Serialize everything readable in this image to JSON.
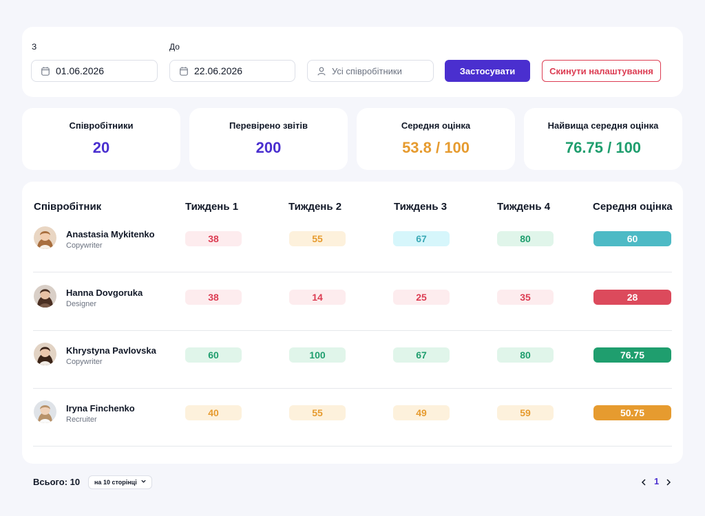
{
  "filters": {
    "from_label": "З",
    "to_label": "До",
    "from_value": "01.06.2026",
    "to_value": "22.06.2026",
    "employee_placeholder": "Усі співробітники",
    "apply_label": "Застосувати",
    "reset_label": "Скинути налаштування"
  },
  "stats": [
    {
      "title": "Співробітники",
      "value": "20",
      "color": "#4a2fcf"
    },
    {
      "title": "Перевірено звітів",
      "value": "200",
      "color": "#4a2fcf"
    },
    {
      "title": "Середня оцінка",
      "value": "53.8 / 100",
      "color": "#e69b2f"
    },
    {
      "title": "Найвища середня оцінка",
      "value": "76.75 / 100",
      "color": "#1f9e6e"
    }
  ],
  "table": {
    "headers": [
      "Співробітник",
      "Тиждень 1",
      "Тиждень 2",
      "Тиждень 3",
      "Тиждень 4",
      "Середня оцінка"
    ],
    "rows": [
      {
        "name": "Anastasia Mykitenko",
        "role": "Copywriter",
        "weeks": [
          "38",
          "55",
          "67",
          "80"
        ],
        "avg": "60"
      },
      {
        "name": "Hanna Dovgoruka",
        "role": "Designer",
        "weeks": [
          "38",
          "14",
          "25",
          "35"
        ],
        "avg": "28"
      },
      {
        "name": "Khrystyna Pavlovska",
        "role": "Copywriter",
        "weeks": [
          "60",
          "100",
          "67",
          "80"
        ],
        "avg": "76.75"
      },
      {
        "name": "Iryna Finchenko",
        "role": "Recruiter",
        "weeks": [
          "40",
          "55",
          "49",
          "59"
        ],
        "avg": "50.75"
      }
    ]
  },
  "colors": {
    "accent": "#4a2fcf",
    "danger": "#dc3c52",
    "red_bg": "#fdecee",
    "red_fg": "#dc3c52",
    "orange_bg": "#fdf1dc",
    "orange_fg": "#e69b2f",
    "cyan_bg": "#d6f6fb",
    "cyan_fg": "#3aa8b5",
    "green_bg": "#e0f5ea",
    "green_fg": "#1f9e6e",
    "avg_cyan": "#4dbac5",
    "avg_red": "#dc4a5c",
    "avg_green": "#1f9e6e",
    "avg_orange": "#e69b2f"
  },
  "footer": {
    "total": "Всього: 10",
    "per_page": "на 10 сторінці",
    "current_page": "1"
  },
  "icons": {
    "date": "calendar-icon",
    "employee": "user-icon",
    "prev": "chevron-left-icon",
    "next": "chevron-right-icon",
    "dropdown": "chevron-down-icon"
  }
}
